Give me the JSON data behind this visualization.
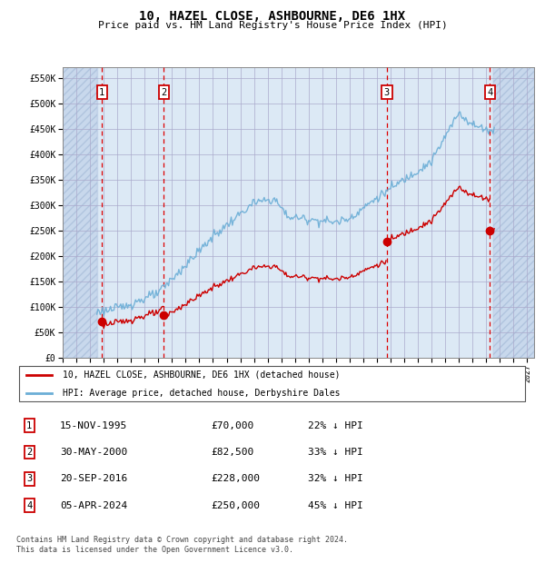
{
  "title": "10, HAZEL CLOSE, ASHBOURNE, DE6 1HX",
  "subtitle": "Price paid vs. HM Land Registry's House Price Index (HPI)",
  "xlim_start": 1993.0,
  "xlim_end": 2027.5,
  "ylim_min": 0,
  "ylim_max": 570000,
  "yticks": [
    0,
    50000,
    100000,
    150000,
    200000,
    250000,
    300000,
    350000,
    400000,
    450000,
    500000,
    550000
  ],
  "ytick_labels": [
    "£0",
    "£50K",
    "£100K",
    "£150K",
    "£200K",
    "£250K",
    "£300K",
    "£350K",
    "£400K",
    "£450K",
    "£500K",
    "£550K"
  ],
  "xticks": [
    1993,
    1994,
    1995,
    1996,
    1997,
    1998,
    1999,
    2000,
    2001,
    2002,
    2003,
    2004,
    2005,
    2006,
    2007,
    2008,
    2009,
    2010,
    2011,
    2012,
    2013,
    2014,
    2015,
    2016,
    2017,
    2018,
    2019,
    2020,
    2021,
    2022,
    2023,
    2024,
    2025,
    2026,
    2027
  ],
  "sale_dates": [
    1995.88,
    2000.41,
    2016.72,
    2024.26
  ],
  "sale_prices": [
    70000,
    82500,
    228000,
    250000
  ],
  "sale_labels": [
    "1",
    "2",
    "3",
    "4"
  ],
  "sale_label_info": [
    {
      "label": "1",
      "date": "15-NOV-1995",
      "price": "£70,000",
      "pct": "22% ↓ HPI"
    },
    {
      "label": "2",
      "date": "30-MAY-2000",
      "price": "£82,500",
      "pct": "33% ↓ HPI"
    },
    {
      "label": "3",
      "date": "20-SEP-2016",
      "price": "£228,000",
      "pct": "32% ↓ HPI"
    },
    {
      "label": "4",
      "date": "05-APR-2024",
      "price": "£250,000",
      "pct": "45% ↓ HPI"
    }
  ],
  "hpi_color": "#6baed6",
  "sale_color": "#cc0000",
  "legend_property": "10, HAZEL CLOSE, ASHBOURNE, DE6 1HX (detached house)",
  "legend_hpi": "HPI: Average price, detached house, Derbyshire Dales",
  "footer": "Contains HM Land Registry data © Crown copyright and database right 2024.\nThis data is licensed under the Open Government Licence v3.0.",
  "hpi_data_start": 1995.5,
  "hpi_data_end": 2024.5
}
